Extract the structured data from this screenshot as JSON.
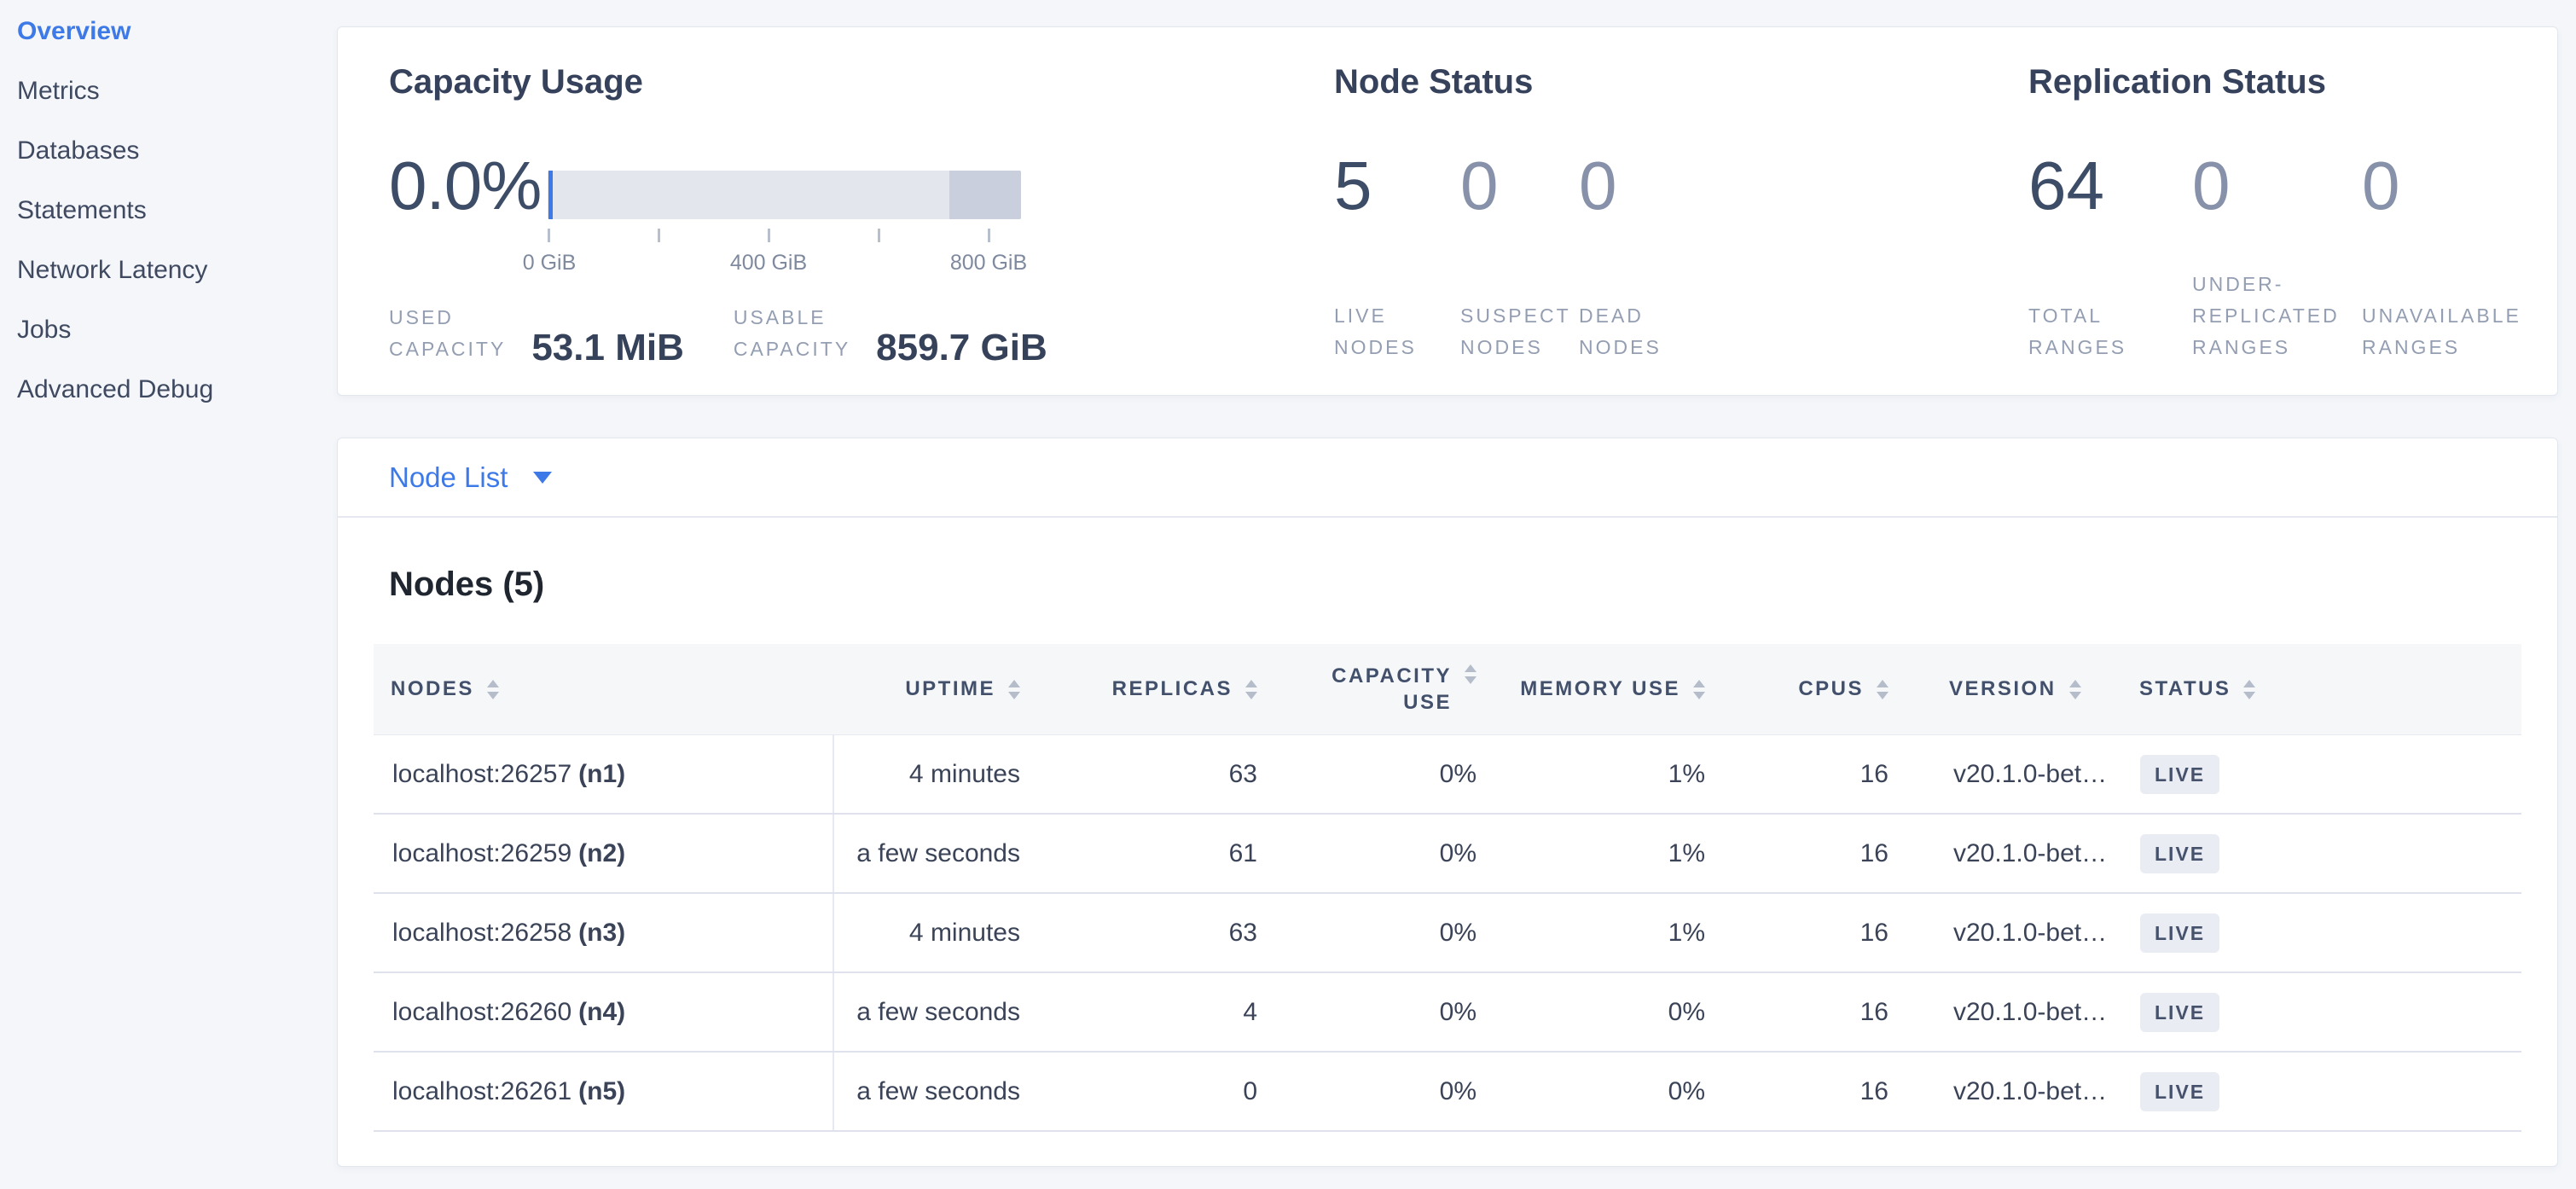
{
  "colors": {
    "accent_blue": "#3e7ae7",
    "page_background": "#f4f6fa",
    "status_live_badge_bg": "#e9ecf3",
    "status_live_badge_text": "#46526c",
    "gauge_track": "#e3e6ed",
    "gauge_reserved": "#c9cfdc",
    "gauge_used_marker": "#3e7ae7"
  },
  "sidebar": {
    "items": [
      {
        "label": "Overview",
        "active": true
      },
      {
        "label": "Metrics",
        "active": false
      },
      {
        "label": "Databases",
        "active": false
      },
      {
        "label": "Statements",
        "active": false
      },
      {
        "label": "Network Latency",
        "active": false
      },
      {
        "label": "Jobs",
        "active": false
      },
      {
        "label": "Advanced Debug",
        "active": false
      }
    ]
  },
  "summary": {
    "capacity": {
      "title": "Capacity Usage",
      "percent": "0.0%",
      "ticks": [
        "0 GiB",
        "400 GiB",
        "800 GiB"
      ],
      "stats": [
        {
          "label": "USED\nCAPACITY",
          "value": "53.1 MiB"
        },
        {
          "label": "USABLE\nCAPACITY",
          "value": "859.7 GiB"
        }
      ]
    },
    "node_status": {
      "title": "Node Status",
      "stats": [
        {
          "value": "5",
          "label": "LIVE\nNODES"
        },
        {
          "value": "0",
          "label": "SUSPECT\nNODES"
        },
        {
          "value": "0",
          "label": "DEAD\nNODES"
        }
      ]
    },
    "replication": {
      "title": "Replication Status",
      "stats": [
        {
          "value": "64",
          "label": "TOTAL\nRANGES"
        },
        {
          "value": "0",
          "label": "UNDER-\nREPLICATED\nRANGES"
        },
        {
          "value": "0",
          "label": "UNAVAILABLE\nRANGES"
        }
      ]
    }
  },
  "node_list": {
    "label": "Node List"
  },
  "nodes_section": {
    "title": "Nodes (5)",
    "columns": [
      "NODES",
      "UPTIME",
      "REPLICAS",
      "CAPACITY USE",
      "MEMORY USE",
      "CPUS",
      "VERSION",
      "STATUS"
    ],
    "rows": [
      {
        "address": "localhost:26257",
        "id": "(n1)",
        "uptime": "4 minutes",
        "replicas": "63",
        "capacity_use": "0%",
        "memory_use": "1%",
        "cpus": "16",
        "version": "v20.1.0-bet…",
        "status": "LIVE"
      },
      {
        "address": "localhost:26259",
        "id": "(n2)",
        "uptime": "a few seconds",
        "replicas": "61",
        "capacity_use": "0%",
        "memory_use": "1%",
        "cpus": "16",
        "version": "v20.1.0-bet…",
        "status": "LIVE"
      },
      {
        "address": "localhost:26258",
        "id": "(n3)",
        "uptime": "4 minutes",
        "replicas": "63",
        "capacity_use": "0%",
        "memory_use": "1%",
        "cpus": "16",
        "version": "v20.1.0-bet…",
        "status": "LIVE"
      },
      {
        "address": "localhost:26260",
        "id": "(n4)",
        "uptime": "a few seconds",
        "replicas": "4",
        "capacity_use": "0%",
        "memory_use": "0%",
        "cpus": "16",
        "version": "v20.1.0-bet…",
        "status": "LIVE"
      },
      {
        "address": "localhost:26261",
        "id": "(n5)",
        "uptime": "a few seconds",
        "replicas": "0",
        "capacity_use": "0%",
        "memory_use": "0%",
        "cpus": "16",
        "version": "v20.1.0-bet…",
        "status": "LIVE"
      }
    ]
  }
}
